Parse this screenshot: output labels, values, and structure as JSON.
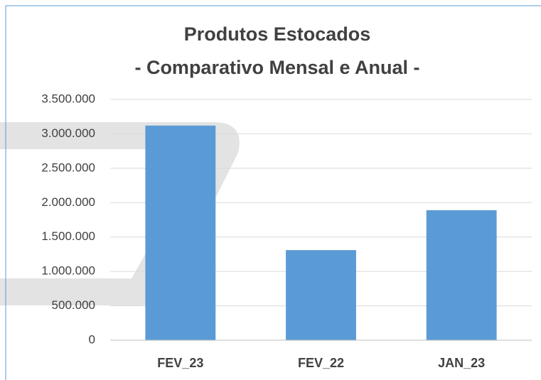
{
  "chart_data": {
    "type": "bar",
    "title": [
      "Produtos Estocados",
      "- Comparativo Mensal e Anual -"
    ],
    "categories": [
      "FEV_23",
      "FEV_22",
      "JAN_23"
    ],
    "values": [
      3120000,
      1310000,
      1890000
    ],
    "color": "#5b9bd5",
    "ylim": [
      0,
      3500000
    ],
    "yticks": [
      0,
      {
        "value": 500000,
        "label": "500.000"
      },
      {
        "value": 1000000,
        "label": "1.000.000"
      },
      {
        "value": 1500000,
        "label": "1.500.000"
      },
      {
        "value": 2000000,
        "label": "2.000.000"
      },
      {
        "value": 2500000,
        "label": "2.500.000"
      },
      {
        "value": 3000000,
        "label": "3.000.000"
      },
      {
        "value": 3500000,
        "label": "3.500.000"
      }
    ],
    "grid": true
  }
}
